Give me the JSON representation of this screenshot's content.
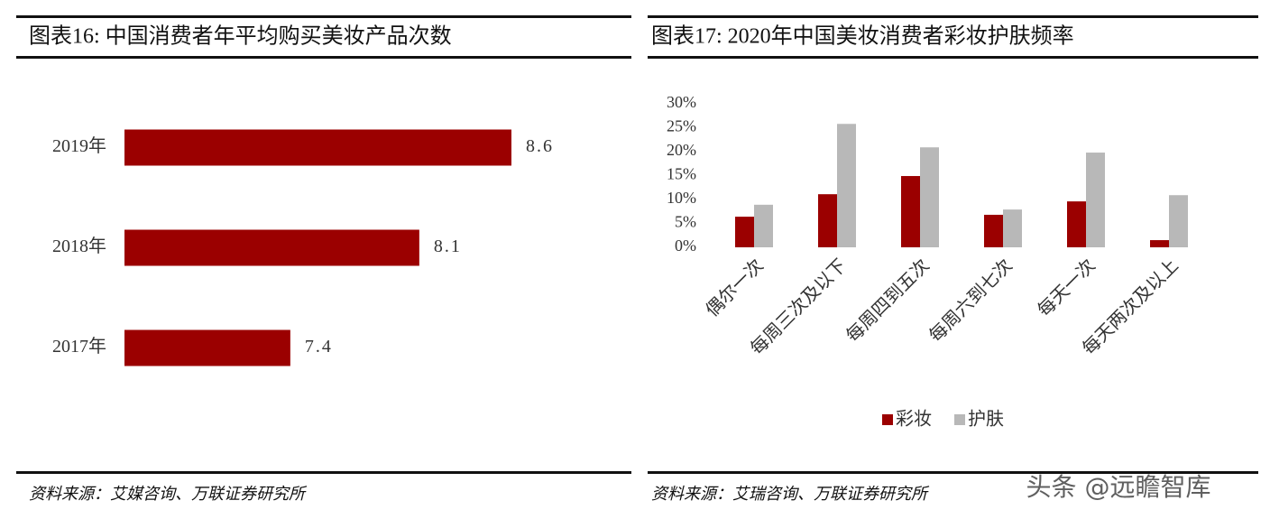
{
  "chart_data": [
    {
      "type": "bar",
      "orientation": "horizontal",
      "title": "图表16:  中国消费者年平均购买美妆产品次数",
      "categories": [
        "2019年",
        "2018年",
        "2017年"
      ],
      "values": [
        8.6,
        8.1,
        7.4
      ],
      "color": "#9b0000",
      "xlim": [
        6.5,
        9.3
      ],
      "source": "资料来源：艾媒咨询、万联证券研究所"
    },
    {
      "type": "bar",
      "orientation": "vertical",
      "title": "图表17:    2020年中国美妆消费者彩妆护肤频率",
      "categories": [
        "偶尔一次",
        "每周三次及以下",
        "每周四到五次",
        "每周六到七次",
        "每天一次",
        "每天两次及以上"
      ],
      "series": [
        {
          "name": "彩妆",
          "color": "#9b0000",
          "values": [
            6.4,
            11.1,
            14.9,
            6.8,
            9.6,
            1.5
          ]
        },
        {
          "name": "护肤",
          "color": "#b8b8b8",
          "values": [
            8.9,
            25.8,
            20.9,
            7.9,
            19.8,
            10.9
          ]
        }
      ],
      "ylim": [
        0,
        30
      ],
      "yticks": [
        {
          "value": 0,
          "label": "0%"
        },
        {
          "value": 5,
          "label": "5%"
        },
        {
          "value": 10,
          "label": "10%"
        },
        {
          "value": 15,
          "label": "15%"
        },
        {
          "value": 20,
          "label": "20%"
        },
        {
          "value": 25,
          "label": "25%"
        },
        {
          "value": 30,
          "label": "30%"
        }
      ],
      "legend": "bottom",
      "source": "资料来源：艾瑞咨询、万联证券研究所"
    }
  ],
  "watermark": "头条 @远瞻智库"
}
